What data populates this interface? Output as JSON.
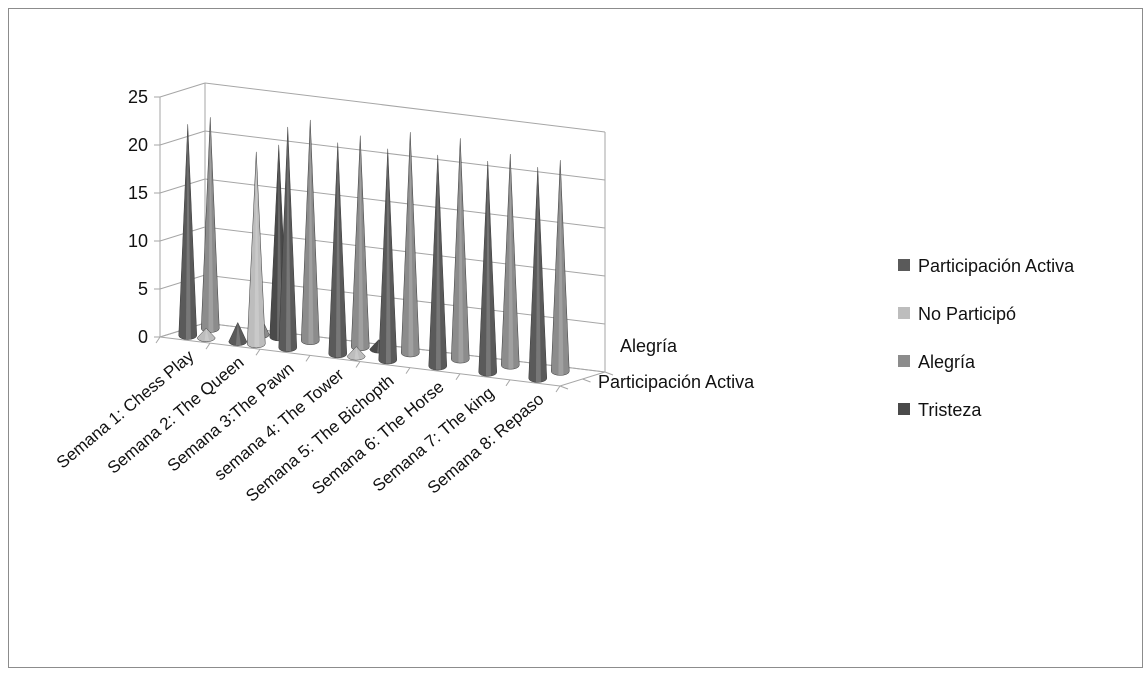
{
  "chart_data": {
    "type": "bar",
    "style": "3d-cone",
    "title": "",
    "xlabel": "",
    "ylabel": "",
    "ylim": [
      0,
      25
    ],
    "y_ticks": [
      "0",
      "5",
      "10",
      "15",
      "20",
      "25"
    ],
    "grid": true,
    "legend_position": "right",
    "categories": [
      "Semana 1: Chess Play",
      "Semana 2: The Queen",
      "Semana 3:The Pawn",
      "semana 4: The Tower",
      "Semana 5: The Bichopth",
      "Semana 6: The Horse",
      "Semana 7: The king",
      "Semana 8: Repaso"
    ],
    "depth_labels": [
      "Participación Activa",
      "Alegría"
    ],
    "series": [
      {
        "name": "Participación Activa",
        "color": "#5a5a5a",
        "row": 0,
        "values": [
          22,
          2,
          23,
          22,
          22,
          22,
          22,
          22
        ]
      },
      {
        "name": "No Participó",
        "color": "#bdbdbd",
        "row": 0,
        "values": [
          1,
          20,
          0,
          1,
          0,
          0,
          0,
          0
        ]
      },
      {
        "name": "Alegría",
        "color": "#8c8c8c",
        "row": 1,
        "values": [
          22,
          2,
          23,
          22,
          23,
          23,
          22,
          22
        ]
      },
      {
        "name": "Tristeza",
        "color": "#4a4a4a",
        "row": 1,
        "values": [
          0,
          20,
          0,
          1,
          0,
          0,
          0,
          0
        ]
      }
    ]
  }
}
